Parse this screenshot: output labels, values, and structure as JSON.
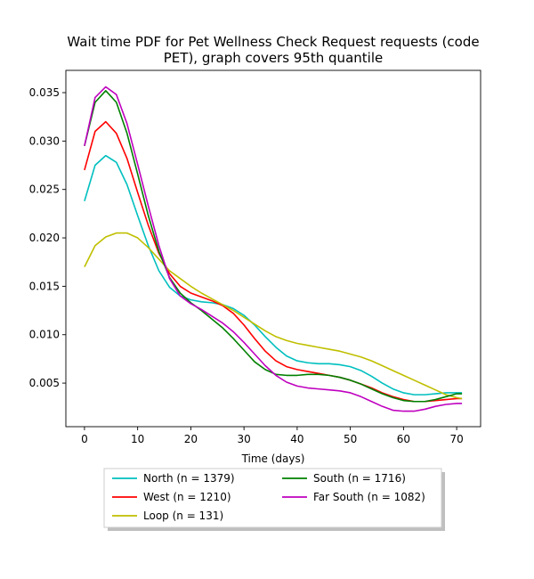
{
  "chart_data": {
    "type": "line",
    "title_lines": [
      "Wait time PDF for Pet Wellness Check Request  requests (code",
      "PET), graph covers 95th quantile"
    ],
    "xlabel": "Time (days)",
    "ylabel": "",
    "xlim": [
      -3.5,
      74.5
    ],
    "ylim": [
      0.0005,
      0.0373
    ],
    "x_ticks": [
      0,
      10,
      20,
      30,
      40,
      50,
      60,
      70
    ],
    "y_ticks": [
      0.005,
      0.01,
      0.015,
      0.02,
      0.025,
      0.03,
      0.035
    ],
    "y_tick_labels": [
      "0.005",
      "0.010",
      "0.015",
      "0.020",
      "0.025",
      "0.030",
      "0.035"
    ],
    "grid": false,
    "legend_position": "below",
    "x": [
      0,
      2,
      4,
      6,
      8,
      10,
      12,
      14,
      16,
      18,
      20,
      22,
      24,
      26,
      28,
      30,
      32,
      34,
      36,
      38,
      40,
      42,
      44,
      46,
      48,
      50,
      52,
      54,
      56,
      58,
      60,
      62,
      64,
      66,
      68,
      70,
      71
    ],
    "series": [
      {
        "name": "North (n = 1379)",
        "color": "#00bfbf",
        "values": [
          0.0238,
          0.0275,
          0.0285,
          0.0278,
          0.0255,
          0.0223,
          0.0192,
          0.0166,
          0.0149,
          0.014,
          0.0136,
          0.0134,
          0.0133,
          0.0131,
          0.0127,
          0.012,
          0.011,
          0.0098,
          0.0087,
          0.0078,
          0.0073,
          0.0071,
          0.007,
          0.007,
          0.0069,
          0.0067,
          0.0063,
          0.0057,
          0.005,
          0.0044,
          0.004,
          0.0038,
          0.0038,
          0.0039,
          0.004,
          0.004,
          0.004
        ]
      },
      {
        "name": "West (n = 1210)",
        "color": "#ff0000",
        "values": [
          0.027,
          0.031,
          0.032,
          0.0308,
          0.0282,
          0.0247,
          0.0213,
          0.0184,
          0.0163,
          0.015,
          0.0143,
          0.0139,
          0.0135,
          0.013,
          0.0122,
          0.011,
          0.0096,
          0.0083,
          0.0073,
          0.0067,
          0.0064,
          0.0062,
          0.006,
          0.0058,
          0.0056,
          0.0053,
          0.0049,
          0.0045,
          0.004,
          0.0036,
          0.0033,
          0.0031,
          0.0031,
          0.0032,
          0.0033,
          0.0034,
          0.0034
        ]
      },
      {
        "name": "Loop (n = 131)",
        "color": "#bfbf00",
        "values": [
          0.017,
          0.0192,
          0.0201,
          0.0205,
          0.0205,
          0.02,
          0.019,
          0.0178,
          0.0166,
          0.0158,
          0.015,
          0.0143,
          0.0137,
          0.0131,
          0.0125,
          0.0118,
          0.0111,
          0.0104,
          0.0098,
          0.0094,
          0.0091,
          0.0089,
          0.0087,
          0.0085,
          0.0083,
          0.008,
          0.0077,
          0.0073,
          0.0068,
          0.0063,
          0.0058,
          0.0053,
          0.0048,
          0.0043,
          0.0038,
          0.0035,
          0.0034
        ]
      },
      {
        "name": "South (n = 1716)",
        "color": "#008000",
        "values": [
          0.0295,
          0.034,
          0.0352,
          0.034,
          0.0308,
          0.0266,
          0.0223,
          0.0186,
          0.0159,
          0.0143,
          0.0133,
          0.0125,
          0.0116,
          0.0107,
          0.0096,
          0.0084,
          0.0072,
          0.0064,
          0.0059,
          0.0058,
          0.0058,
          0.0059,
          0.0059,
          0.0058,
          0.0056,
          0.0053,
          0.0049,
          0.0044,
          0.0039,
          0.0035,
          0.0032,
          0.0031,
          0.0031,
          0.0033,
          0.0036,
          0.0039,
          0.0039
        ]
      },
      {
        "name": "Far South (n = 1082)",
        "color": "#bf00bf",
        "values": [
          0.0295,
          0.0345,
          0.0356,
          0.0348,
          0.0318,
          0.0276,
          0.0233,
          0.0192,
          0.0158,
          0.014,
          0.0132,
          0.0126,
          0.0119,
          0.0112,
          0.0103,
          0.0092,
          0.008,
          0.0068,
          0.0058,
          0.0051,
          0.0047,
          0.0045,
          0.0044,
          0.0043,
          0.0042,
          0.004,
          0.0036,
          0.0031,
          0.0026,
          0.0022,
          0.0021,
          0.0021,
          0.0023,
          0.0026,
          0.0028,
          0.0029,
          0.0029
        ]
      }
    ],
    "legend_order": [
      0,
      3,
      1,
      4,
      2
    ]
  }
}
